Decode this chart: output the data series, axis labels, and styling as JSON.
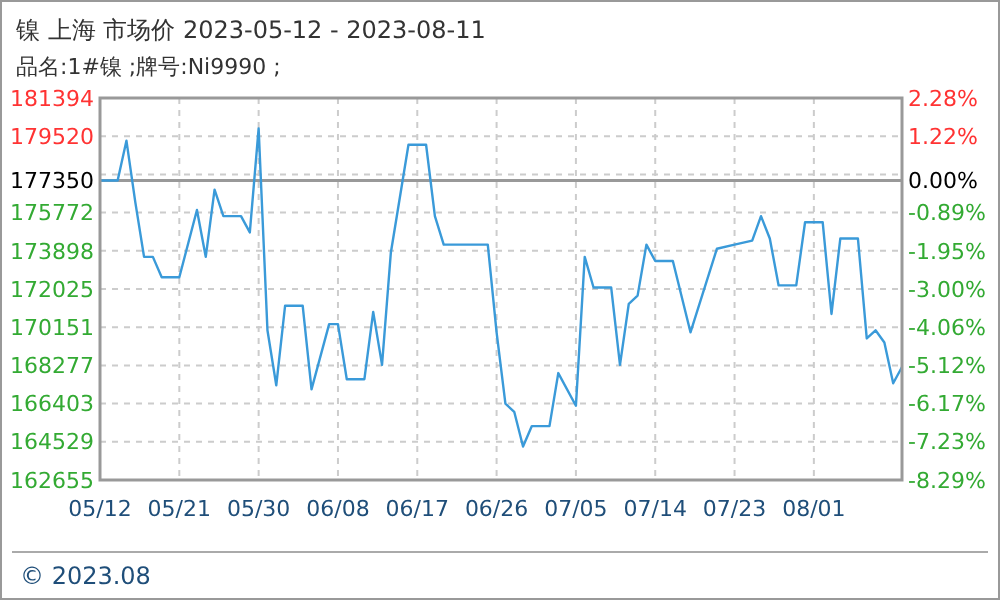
{
  "chart_data": {
    "type": "line",
    "title": "镍 上海 市场价 2023-05-12 - 2023-08-11",
    "subtitle": "品名:1#镍 ;牌号:Ni9990 ;",
    "annotations": [
      "© 2023.08"
    ],
    "x": [
      "2023-05-12",
      "2023-05-14",
      "2023-05-15",
      "2023-05-16",
      "2023-05-17",
      "2023-05-18",
      "2023-05-19",
      "2023-05-21",
      "2023-05-23",
      "2023-05-24",
      "2023-05-25",
      "2023-05-26",
      "2023-05-28",
      "2023-05-29",
      "2023-05-30",
      "2023-05-31",
      "2023-06-01",
      "2023-06-02",
      "2023-06-04",
      "2023-06-05",
      "2023-06-07",
      "2023-06-08",
      "2023-06-09",
      "2023-06-11",
      "2023-06-12",
      "2023-06-13",
      "2023-06-14",
      "2023-06-16",
      "2023-06-18",
      "2023-06-19",
      "2023-06-20",
      "2023-06-25",
      "2023-06-26",
      "2023-06-27",
      "2023-06-28",
      "2023-06-29",
      "2023-06-30",
      "2023-07-02",
      "2023-07-03",
      "2023-07-05",
      "2023-07-06",
      "2023-07-07",
      "2023-07-09",
      "2023-07-10",
      "2023-07-11",
      "2023-07-12",
      "2023-07-13",
      "2023-07-14",
      "2023-07-16",
      "2023-07-18",
      "2023-07-21",
      "2023-07-23",
      "2023-07-25",
      "2023-07-26",
      "2023-07-27",
      "2023-07-28",
      "2023-07-30",
      "2023-07-31",
      "2023-08-02",
      "2023-08-03",
      "2023-08-04",
      "2023-08-06",
      "2023-08-07",
      "2023-08-08",
      "2023-08-09",
      "2023-08-10",
      "2023-08-11"
    ],
    "series": [
      {
        "color": "#3a9ad9",
        "values": [
          177350,
          177350,
          179300,
          176300,
          173600,
          173600,
          172600,
          172600,
          175900,
          173600,
          176900,
          175600,
          175600,
          174800,
          179900,
          170000,
          167300,
          171200,
          171200,
          167100,
          170300,
          170300,
          167600,
          167600,
          170900,
          168300,
          173800,
          179100,
          179100,
          175600,
          174200,
          174200,
          169900,
          166400,
          166000,
          164300,
          165300,
          165300,
          167900,
          166300,
          173600,
          172100,
          172100,
          168300,
          171300,
          171700,
          174200,
          173400,
          173400,
          169900,
          174000,
          174200,
          174400,
          175600,
          174500,
          172200,
          172200,
          175300,
          175300,
          170800,
          174500,
          174500,
          169600,
          170000,
          169400,
          167400,
          168200
        ]
      }
    ],
    "xlim": [
      "2023-05-12",
      "2023-08-11"
    ],
    "xticks": [
      {
        "value": "2023-05-12",
        "label": "05/12"
      },
      {
        "value": "2023-05-21",
        "label": "05/21"
      },
      {
        "value": "2023-05-30",
        "label": "05/30"
      },
      {
        "value": "2023-06-08",
        "label": "06/08"
      },
      {
        "value": "2023-06-17",
        "label": "06/17"
      },
      {
        "value": "2023-06-26",
        "label": "06/26"
      },
      {
        "value": "2023-07-05",
        "label": "07/05"
      },
      {
        "value": "2023-07-14",
        "label": "07/14"
      },
      {
        "value": "2023-07-23",
        "label": "07/23"
      },
      {
        "value": "2023-08-01",
        "label": "08/01"
      }
    ],
    "ylim": [
      162655,
      181394
    ],
    "yticks": [
      162655,
      164529,
      166403,
      168277,
      170151,
      172025,
      173898,
      175772,
      177350,
      {
        "value": 177646,
        "label": null
      },
      179520,
      181394
    ],
    "y2lim": [
      -8.29,
      2.28
    ],
    "y2ticks": [
      {
        "value": -8.29,
        "label": "-8.29%"
      },
      {
        "value": -7.23,
        "label": "-7.23%"
      },
      {
        "value": -6.17,
        "label": "-6.17%"
      },
      {
        "value": -5.12,
        "label": "-5.12%"
      },
      {
        "value": -4.06,
        "label": "-4.06%"
      },
      {
        "value": -3.0,
        "label": "-3.00%"
      },
      {
        "value": -1.95,
        "label": "-1.95%"
      },
      {
        "value": -0.89,
        "label": "-0.89%"
      },
      {
        "value": 0,
        "label": "0.00%"
      },
      {
        "value": 1.22,
        "label": "1.22%"
      },
      {
        "value": 2.28,
        "label": "2.28%"
      }
    ],
    "ref_lines": [
      {
        "axis": "y",
        "value": 177350,
        "color": "#999999"
      }
    ],
    "grid": true,
    "marker": "none",
    "line_style": "solid"
  }
}
